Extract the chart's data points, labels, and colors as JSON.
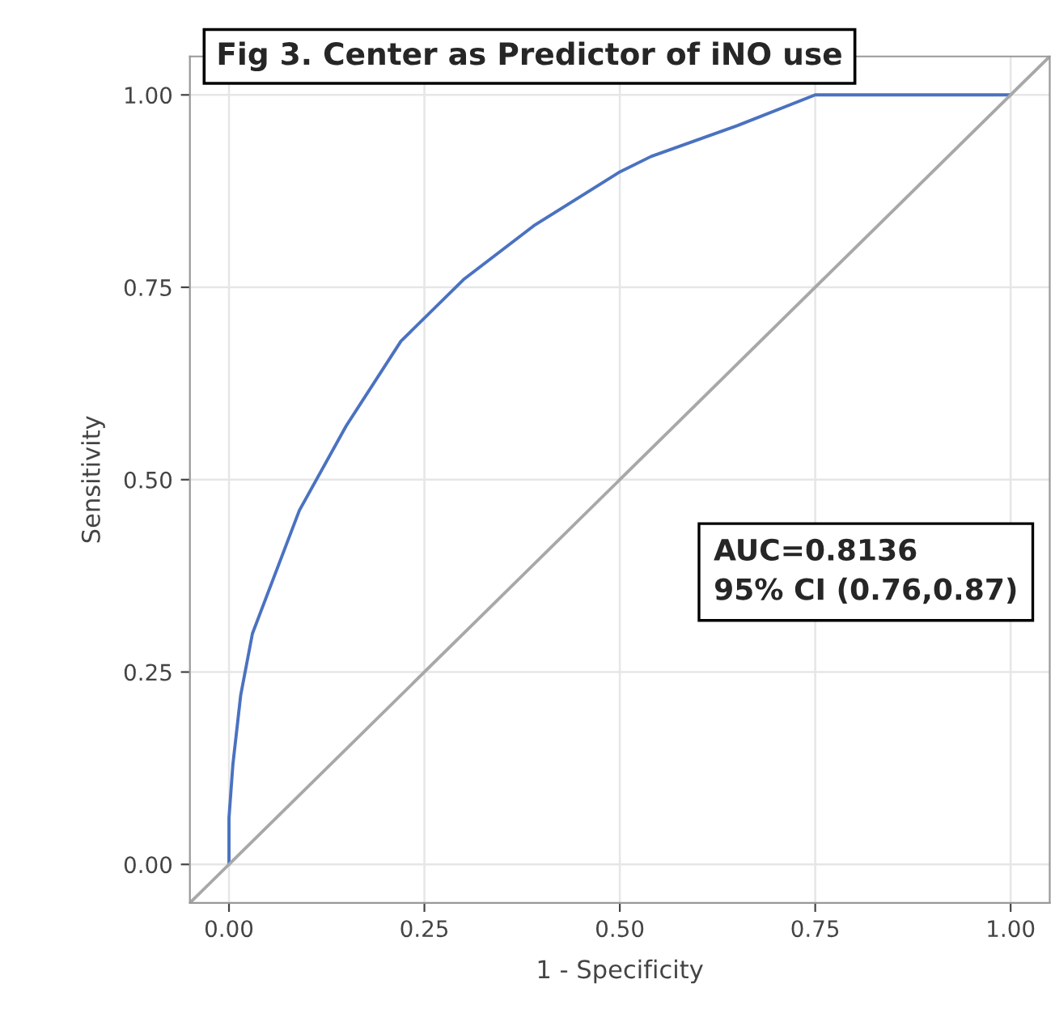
{
  "chart_data": {
    "type": "line",
    "title": "Fig 3. Center as Predictor of iNO use",
    "xlabel": "1 - Specificity",
    "ylabel": "Sensitivity",
    "series": [
      {
        "color": "#4a72c0",
        "x": [
          0,
          0,
          0.005,
          0.015,
          0.03,
          0.09,
          0.15,
          0.22,
          0.3,
          0.39,
          0.5,
          0.54,
          0.65,
          0.75,
          1.0
        ],
        "values": [
          0,
          0.06,
          0.13,
          0.22,
          0.3,
          0.46,
          0.57,
          0.68,
          0.76,
          0.83,
          0.9,
          0.92,
          0.96,
          1.0,
          1.0
        ]
      },
      {
        "color": "#a8a8a8",
        "x": [
          -0.05,
          1.05
        ],
        "values": [
          -0.05,
          1.05
        ]
      }
    ],
    "annotations": [
      "AUC=0.8136\n95% CI (0.76,0.87)"
    ],
    "xlim": [
      -0.05,
      1.05
    ],
    "ylim": [
      -0.05,
      1.05
    ],
    "xticks": [
      {
        "value": 0,
        "label": "0.00"
      },
      {
        "value": 0.25,
        "label": "0.25"
      },
      {
        "value": 0.5,
        "label": "0.50"
      },
      {
        "value": 0.75,
        "label": "0.75"
      },
      {
        "value": 1,
        "label": "1.00"
      }
    ],
    "yticks": [
      {
        "value": 0,
        "label": "0.00"
      },
      {
        "value": 0.25,
        "label": "0.25"
      },
      {
        "value": 0.5,
        "label": "0.50"
      },
      {
        "value": 0.75,
        "label": "0.75"
      },
      {
        "value": 1,
        "label": "1.00"
      }
    ],
    "grid": true,
    "legend": false
  }
}
